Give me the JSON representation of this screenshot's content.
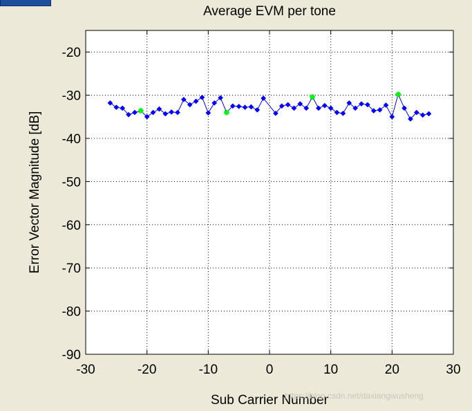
{
  "watermark": "https://blog.csdn.net/daxiangwusheng",
  "chart_data": {
    "type": "line",
    "title": "Average EVM per tone",
    "xlabel": "Sub Carrier Number",
    "ylabel": "Error Vector Magnitude [dB]",
    "xlim": [
      -30,
      30
    ],
    "ylim": [
      -90,
      -15
    ],
    "xticks": [
      -30,
      -20,
      -10,
      0,
      10,
      20,
      30
    ],
    "yticks": [
      -90,
      -80,
      -70,
      -60,
      -50,
      -40,
      -30,
      -20
    ],
    "grid": true,
    "series": [
      {
        "color": "#0000ff",
        "marker": "diamond",
        "x": [
          -26,
          -25,
          -24,
          -23,
          -22,
          -21,
          -20,
          -19,
          -18,
          -17,
          -16,
          -15,
          -14,
          -13,
          -12,
          -11,
          -10,
          -9,
          -8,
          -7,
          -6,
          -5,
          -4,
          -3,
          -2,
          -1,
          1,
          2,
          3,
          4,
          5,
          6,
          7,
          8,
          9,
          10,
          11,
          12,
          13,
          14,
          15,
          16,
          17,
          18,
          19,
          20,
          21,
          22,
          23,
          24,
          25,
          26
        ],
        "y": [
          -31.8,
          -32.8,
          -33.0,
          -34.5,
          -34.0,
          -33.6,
          -35.0,
          -34.0,
          -33.2,
          -34.3,
          -33.9,
          -34.0,
          -31.0,
          -32.2,
          -31.4,
          -30.5,
          -34.1,
          -31.8,
          -30.6,
          -34.0,
          -32.5,
          -32.6,
          -32.8,
          -32.7,
          -33.4,
          -30.7,
          -34.2,
          -32.5,
          -32.2,
          -33.0,
          -32.0,
          -33.0,
          -30.4,
          -33.0,
          -32.4,
          -33.0,
          -34.0,
          -34.2,
          -31.8,
          -33.0,
          -32.0,
          -32.2,
          -33.6,
          -33.4,
          -32.3,
          -35.0,
          -29.8,
          -33.0,
          -35.5,
          -34.0,
          -34.6,
          -34.3
        ]
      },
      {
        "color": "#00ff00",
        "marker": "star",
        "x": [
          -21,
          -7,
          7,
          21
        ],
        "y": [
          -33.6,
          -34.0,
          -30.4,
          -29.8
        ]
      }
    ]
  }
}
